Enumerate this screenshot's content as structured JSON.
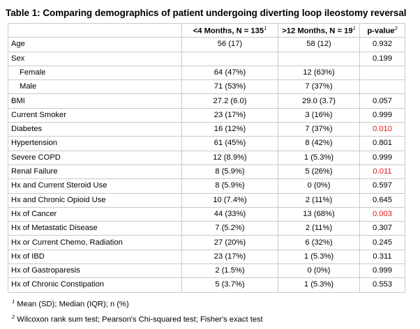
{
  "title": "Table 1: Comparing demographics of patient undergoing diverting loop ileostomy reversal",
  "columns": [
    {
      "label": "",
      "sup": ""
    },
    {
      "label": "<4 Months, N = 135",
      "sup": "1"
    },
    {
      "label": ">12 Months, N = 19",
      "sup": "1"
    },
    {
      "label": "p-value",
      "sup": "2"
    }
  ],
  "rows": [
    {
      "label": "Age",
      "early": "56 (17)",
      "late": "58 (12)",
      "p": "0.932",
      "indent": false,
      "significant": false
    },
    {
      "label": "Sex",
      "early": "",
      "late": "",
      "p": "0.199",
      "indent": false,
      "significant": false
    },
    {
      "label": "Female",
      "early": "64 (47%)",
      "late": "12 (63%)",
      "p": "",
      "indent": true,
      "significant": false
    },
    {
      "label": "Male",
      "early": "71 (53%)",
      "late": "7 (37%)",
      "p": "",
      "indent": true,
      "significant": false
    },
    {
      "label": "BMI",
      "early": "27.2 (6.0)",
      "late": "29.0 (3.7)",
      "p": "0.057",
      "indent": false,
      "significant": false
    },
    {
      "label": "Current Smoker",
      "early": "23 (17%)",
      "late": "3 (16%)",
      "p": "0.999",
      "indent": false,
      "significant": false
    },
    {
      "label": "Diabetes",
      "early": "16 (12%)",
      "late": "7 (37%)",
      "p": "0.010",
      "indent": false,
      "significant": true
    },
    {
      "label": "Hypertension",
      "early": "61 (45%)",
      "late": "8 (42%)",
      "p": "0.801",
      "indent": false,
      "significant": false
    },
    {
      "label": "Severe COPD",
      "early": "12 (8.9%)",
      "late": "1 (5.3%)",
      "p": "0.999",
      "indent": false,
      "significant": false
    },
    {
      "label": "Renal Failure",
      "early": "8 (5.9%)",
      "late": "5 (26%)",
      "p": "0.011",
      "indent": false,
      "significant": true
    },
    {
      "label": "Hx and Current Steroid Use",
      "early": "8 (5.9%)",
      "late": "0 (0%)",
      "p": "0.597",
      "indent": false,
      "significant": false
    },
    {
      "label": "Hx and Chronic Opioid Use",
      "early": "10 (7.4%)",
      "late": "2 (11%)",
      "p": "0.645",
      "indent": false,
      "significant": false
    },
    {
      "label": "Hx of Cancer",
      "early": "44 (33%)",
      "late": "13 (68%)",
      "p": "0.003",
      "indent": false,
      "significant": true
    },
    {
      "label": "Hx of Metastatic Disease",
      "early": "7 (5.2%)",
      "late": "2 (11%)",
      "p": "0.307",
      "indent": false,
      "significant": false
    },
    {
      "label": "Hx or Current Chemo, Radiation",
      "early": "27 (20%)",
      "late": "6 (32%)",
      "p": "0.245",
      "indent": false,
      "significant": false
    },
    {
      "label": "Hx of IBD",
      "early": "23 (17%)",
      "late": "1 (5.3%)",
      "p": "0.311",
      "indent": false,
      "significant": false
    },
    {
      "label": "Hx of Gastroparesis",
      "early": "2 (1.5%)",
      "late": "0 (0%)",
      "p": "0.999",
      "indent": false,
      "significant": false
    },
    {
      "label": "Hx of Chronic Constipation",
      "early": "5 (3.7%)",
      "late": "1 (5.3%)",
      "p": "0.553",
      "indent": false,
      "significant": false
    }
  ],
  "footnotes": [
    {
      "sup": "1",
      "text": "Mean (SD); Median (IQR); n (%)"
    },
    {
      "sup": "2",
      "text": "Wilcoxon rank sum test; Pearson's Chi-squared test; Fisher's exact test"
    }
  ],
  "colors": {
    "significant": "#e0171b",
    "border": "#c9c9c9",
    "text": "#000000"
  }
}
